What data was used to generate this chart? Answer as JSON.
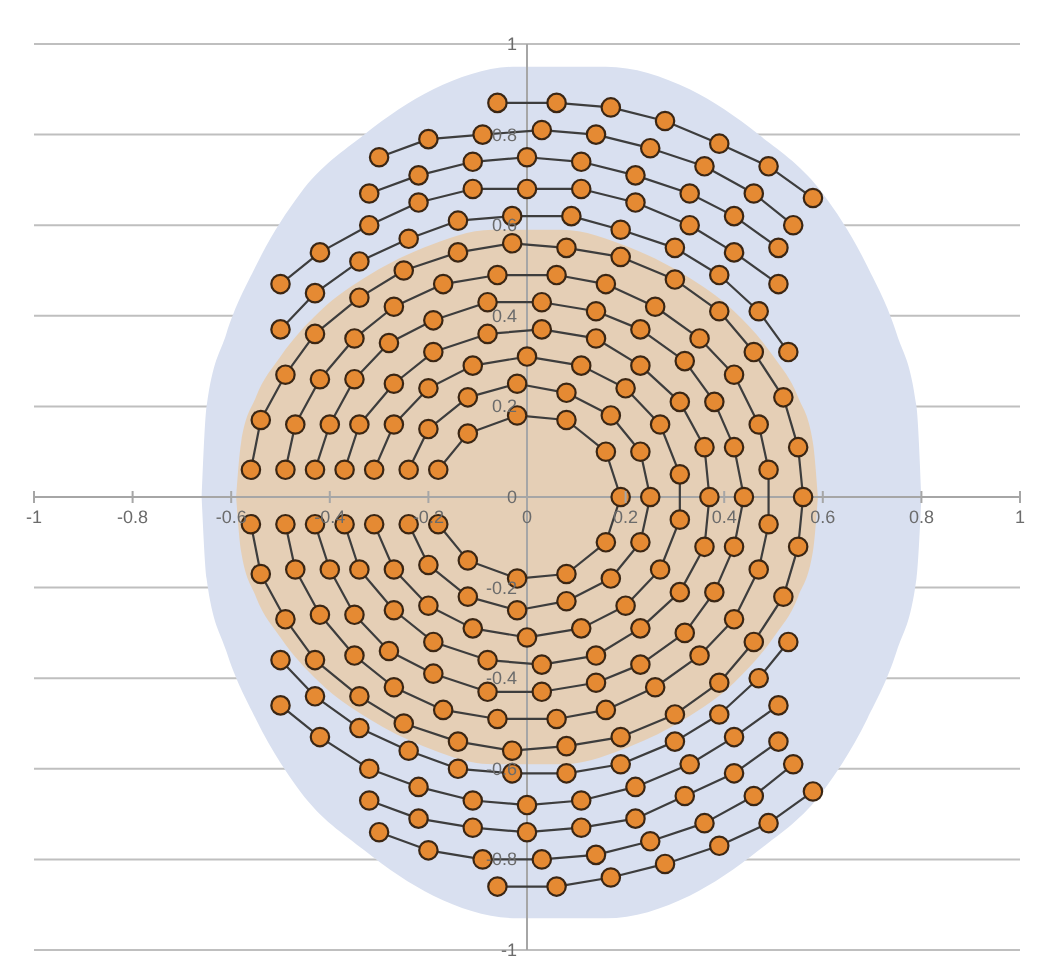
{
  "chart_data": {
    "type": "line",
    "marker": "circle",
    "line_style": "solid",
    "grid": "y",
    "xlim": [
      -1,
      1
    ],
    "ylim": [
      -1,
      1
    ],
    "xticks": [
      -1,
      -0.8,
      -0.6,
      -0.4,
      -0.2,
      0,
      0.2,
      0.4,
      0.6,
      0.8,
      1
    ],
    "yticks": [
      -1,
      -0.8,
      -0.6,
      -0.4,
      -0.2,
      0,
      0.2,
      0.4,
      0.6,
      0.8,
      1
    ],
    "series": [
      {
        "type": "area",
        "marker": "none",
        "color": "#d9e0f0",
        "x": [
          -0.66,
          -0.65,
          -0.61,
          -0.55,
          -0.46,
          -0.33,
          -0.19,
          -0.02,
          0.16,
          0.33,
          0.47,
          0.6,
          0.69,
          0.75,
          0.79,
          0.8
        ],
        "values": [
          0,
          0.2,
          0.36,
          0.51,
          0.67,
          0.8,
          0.9,
          0.95,
          0.95,
          0.9,
          0.8,
          0.67,
          0.51,
          0.36,
          0.2,
          0
        ]
      },
      {
        "type": "area",
        "marker": "none",
        "color": "#d9e0f0",
        "x": [
          -0.66,
          -0.65,
          -0.61,
          -0.55,
          -0.46,
          -0.33,
          -0.19,
          -0.02,
          0.16,
          0.33,
          0.47,
          0.6,
          0.69,
          0.75,
          0.79,
          0.8
        ],
        "values": [
          0,
          -0.18,
          -0.34,
          -0.49,
          -0.65,
          -0.78,
          -0.88,
          -0.93,
          -0.93,
          -0.88,
          -0.78,
          -0.65,
          -0.49,
          -0.34,
          -0.18,
          0
        ]
      },
      {
        "type": "area",
        "marker": "none",
        "color": "#e5cfb6",
        "x": [
          -0.59,
          -0.58,
          -0.55,
          -0.5,
          -0.42,
          -0.32,
          -0.21,
          -0.07,
          0.07,
          0.21,
          0.32,
          0.42,
          0.5,
          0.55,
          0.58,
          0.59
        ],
        "values": [
          0,
          0.12,
          0.22,
          0.31,
          0.41,
          0.49,
          0.55,
          0.59,
          0.59,
          0.55,
          0.49,
          0.41,
          0.31,
          0.22,
          0.12,
          0
        ]
      },
      {
        "type": "area",
        "marker": "none",
        "color": "#e5cfb6",
        "x": [
          -0.59,
          -0.58,
          -0.55,
          -0.5,
          -0.42,
          -0.32,
          -0.21,
          -0.07,
          0.07,
          0.21,
          0.32,
          0.42,
          0.5,
          0.55,
          0.58,
          0.59
        ],
        "values": [
          0,
          -0.12,
          -0.22,
          -0.31,
          -0.41,
          -0.49,
          -0.55,
          -0.59,
          -0.59,
          -0.55,
          -0.49,
          -0.41,
          -0.31,
          -0.22,
          -0.12,
          0
        ]
      },
      {
        "color": "#e58a33",
        "x": [
          -0.18,
          -0.12,
          -0.02,
          0.08,
          0.16,
          0.19,
          0.16,
          0.08,
          -0.02,
          -0.12,
          -0.18
        ],
        "values": [
          0.06,
          0.14,
          0.18,
          0.17,
          0.1,
          0.0,
          -0.1,
          -0.17,
          -0.18,
          -0.14,
          -0.06
        ]
      },
      {
        "color": "#e58a33",
        "x": [
          -0.24,
          -0.2,
          -0.12,
          -0.02,
          0.08,
          0.17,
          0.23,
          0.25,
          0.23,
          0.17,
          0.08,
          -0.02,
          -0.12,
          -0.2,
          -0.24
        ],
        "values": [
          0.06,
          0.15,
          0.22,
          0.25,
          0.23,
          0.18,
          0.1,
          0.0,
          -0.1,
          -0.18,
          -0.23,
          -0.25,
          -0.22,
          -0.15,
          -0.06
        ]
      },
      {
        "color": "#e58a33",
        "x": [
          -0.31,
          -0.27,
          -0.2,
          -0.11,
          0.0,
          0.11,
          0.2,
          0.27,
          0.31,
          0.31,
          0.27,
          0.2,
          0.11,
          0.0,
          -0.11,
          -0.2,
          -0.27,
          -0.31
        ],
        "values": [
          0.06,
          0.16,
          0.24,
          0.29,
          0.31,
          0.29,
          0.24,
          0.16,
          0.05,
          -0.05,
          -0.16,
          -0.24,
          -0.29,
          -0.31,
          -0.29,
          -0.24,
          -0.16,
          -0.06
        ]
      },
      {
        "color": "#e58a33",
        "x": [
          -0.37,
          -0.34,
          -0.27,
          -0.19,
          -0.08,
          0.03,
          0.14,
          0.23,
          0.31,
          0.36,
          0.37,
          0.36,
          0.31,
          0.23,
          0.14,
          0.03,
          -0.08,
          -0.19,
          -0.27,
          -0.34,
          -0.37
        ],
        "values": [
          0.06,
          0.16,
          0.25,
          0.32,
          0.36,
          0.37,
          0.35,
          0.29,
          0.21,
          0.11,
          0.0,
          -0.11,
          -0.21,
          -0.29,
          -0.35,
          -0.37,
          -0.36,
          -0.32,
          -0.25,
          -0.16,
          -0.06
        ]
      },
      {
        "color": "#e58a33",
        "x": [
          -0.43,
          -0.4,
          -0.35,
          -0.28,
          -0.19,
          -0.08,
          0.03,
          0.14,
          0.23,
          0.32,
          0.38,
          0.42,
          0.44,
          0.42,
          0.38,
          0.32,
          0.23,
          0.14,
          0.03,
          -0.08,
          -0.19,
          -0.28,
          -0.35,
          -0.4,
          -0.43
        ],
        "values": [
          0.06,
          0.16,
          0.26,
          0.34,
          0.39,
          0.43,
          0.43,
          0.41,
          0.37,
          0.3,
          0.21,
          0.11,
          0.0,
          -0.11,
          -0.21,
          -0.3,
          -0.37,
          -0.41,
          -0.43,
          -0.43,
          -0.39,
          -0.34,
          -0.26,
          -0.16,
          -0.06
        ]
      },
      {
        "color": "#e58a33",
        "x": [
          -0.49,
          -0.47,
          -0.42,
          -0.35,
          -0.27,
          -0.17,
          -0.06,
          0.06,
          0.16,
          0.26,
          0.35,
          0.42,
          0.47,
          0.49,
          0.49,
          0.47,
          0.42,
          0.35,
          0.26,
          0.16,
          0.06,
          -0.06,
          -0.17,
          -0.27,
          -0.35,
          -0.42,
          -0.47,
          -0.49
        ],
        "values": [
          0.06,
          0.16,
          0.26,
          0.35,
          0.42,
          0.47,
          0.49,
          0.49,
          0.47,
          0.42,
          0.35,
          0.27,
          0.16,
          0.06,
          -0.06,
          -0.16,
          -0.27,
          -0.35,
          -0.42,
          -0.47,
          -0.49,
          -0.49,
          -0.47,
          -0.42,
          -0.35,
          -0.26,
          -0.16,
          -0.06
        ]
      },
      {
        "color": "#e58a33",
        "x": [
          -0.56,
          -0.54,
          -0.49,
          -0.43,
          -0.34,
          -0.25,
          -0.14,
          -0.03,
          0.08,
          0.19,
          0.3,
          0.39,
          0.46,
          0.52,
          0.55,
          0.56,
          0.55,
          0.52,
          0.46,
          0.39,
          0.3,
          0.19,
          0.08,
          -0.03,
          -0.14,
          -0.25,
          -0.34,
          -0.43,
          -0.49,
          -0.54,
          -0.56
        ],
        "values": [
          0.06,
          0.17,
          0.27,
          0.36,
          0.44,
          0.5,
          0.54,
          0.56,
          0.55,
          0.53,
          0.48,
          0.41,
          0.32,
          0.22,
          0.11,
          0.0,
          -0.11,
          -0.22,
          -0.32,
          -0.41,
          -0.48,
          -0.53,
          -0.55,
          -0.56,
          -0.54,
          -0.5,
          -0.44,
          -0.36,
          -0.27,
          -0.17,
          -0.06
        ]
      },
      {
        "color": "#e58a33",
        "x": [
          -0.5,
          -0.43,
          -0.34,
          -0.24,
          -0.14,
          -0.03,
          0.09,
          0.19,
          0.3,
          0.39,
          0.47,
          0.53
        ],
        "values": [
          0.37,
          0.45,
          0.52,
          0.57,
          0.61,
          0.62,
          0.62,
          0.59,
          0.55,
          0.49,
          0.41,
          0.32
        ]
      },
      {
        "color": "#e58a33",
        "x": [
          -0.5,
          -0.42,
          -0.32,
          -0.22,
          -0.11,
          0.0,
          0.11,
          0.22,
          0.33,
          0.42,
          0.51
        ],
        "values": [
          0.47,
          0.54,
          0.6,
          0.65,
          0.68,
          0.68,
          0.68,
          0.65,
          0.6,
          0.54,
          0.47
        ]
      },
      {
        "color": "#e58a33",
        "x": [
          -0.32,
          -0.22,
          -0.11,
          0.0,
          0.11,
          0.22,
          0.33,
          0.42,
          0.51
        ],
        "values": [
          0.67,
          0.71,
          0.74,
          0.75,
          0.74,
          0.71,
          0.67,
          0.62,
          0.55
        ]
      },
      {
        "color": "#e58a33",
        "x": [
          -0.3,
          -0.2,
          -0.09,
          0.03,
          0.14,
          0.25,
          0.36,
          0.46,
          0.54
        ],
        "values": [
          0.75,
          0.79,
          0.8,
          0.81,
          0.8,
          0.77,
          0.73,
          0.67,
          0.6
        ]
      },
      {
        "color": "#e58a33",
        "x": [
          -0.06,
          0.06,
          0.17,
          0.28,
          0.39,
          0.49,
          0.58
        ],
        "values": [
          0.87,
          0.87,
          0.86,
          0.83,
          0.78,
          0.73,
          0.66
        ]
      },
      {
        "color": "#e58a33",
        "x": [
          -0.5,
          -0.43,
          -0.34,
          -0.24,
          -0.14,
          -0.03,
          0.08,
          0.19,
          0.3,
          0.39,
          0.47,
          0.53
        ],
        "values": [
          -0.36,
          -0.44,
          -0.51,
          -0.56,
          -0.6,
          -0.61,
          -0.61,
          -0.59,
          -0.54,
          -0.48,
          -0.4,
          -0.32
        ]
      },
      {
        "color": "#e58a33",
        "x": [
          -0.5,
          -0.42,
          -0.32,
          -0.22,
          -0.11,
          0.0,
          0.11,
          0.22,
          0.33,
          0.42,
          0.51
        ],
        "values": [
          -0.46,
          -0.53,
          -0.6,
          -0.64,
          -0.67,
          -0.68,
          -0.67,
          -0.64,
          -0.59,
          -0.53,
          -0.46
        ]
      },
      {
        "color": "#e58a33",
        "x": [
          -0.32,
          -0.22,
          -0.11,
          0.0,
          0.11,
          0.22,
          0.32,
          0.42,
          0.51
        ],
        "values": [
          -0.67,
          -0.71,
          -0.73,
          -0.74,
          -0.73,
          -0.71,
          -0.66,
          -0.61,
          -0.54
        ]
      },
      {
        "color": "#e58a33",
        "x": [
          -0.3,
          -0.2,
          -0.09,
          0.03,
          0.14,
          0.25,
          0.36,
          0.46,
          0.54
        ],
        "values": [
          -0.74,
          -0.78,
          -0.8,
          -0.8,
          -0.79,
          -0.76,
          -0.72,
          -0.66,
          -0.59
        ]
      },
      {
        "color": "#e58a33",
        "x": [
          -0.06,
          0.06,
          0.17,
          0.28,
          0.39,
          0.49,
          0.58
        ],
        "values": [
          -0.86,
          -0.86,
          -0.84,
          -0.81,
          -0.77,
          -0.72,
          -0.65
        ]
      }
    ]
  }
}
